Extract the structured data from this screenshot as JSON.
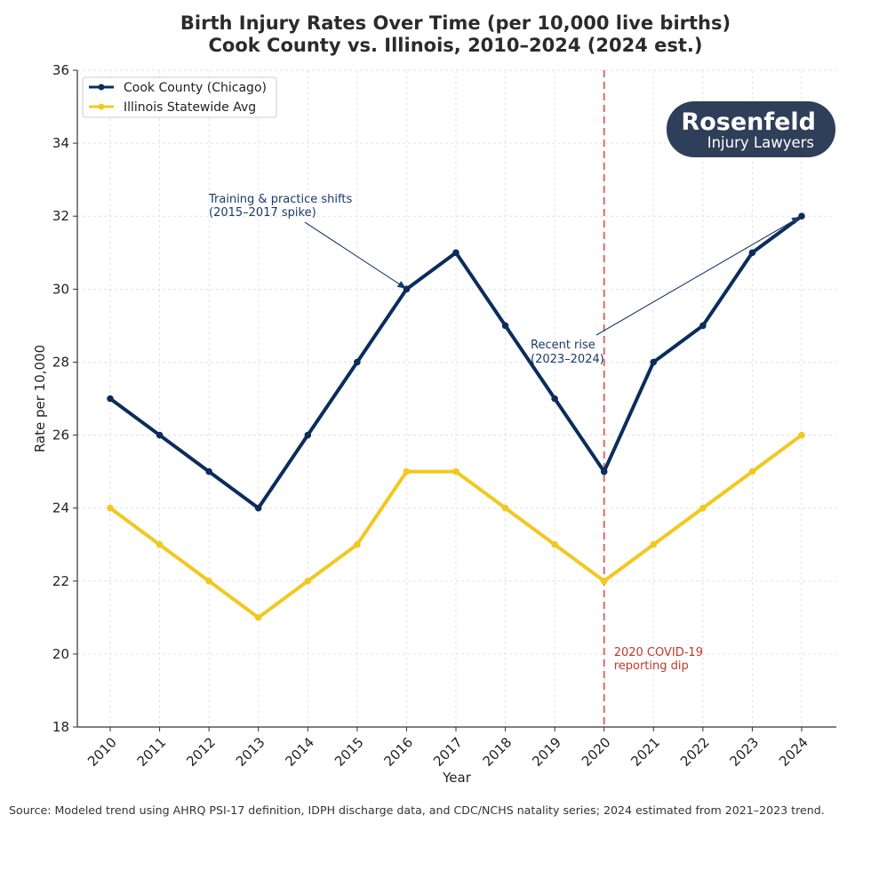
{
  "chart_data": {
    "type": "line",
    "title_line1": "Birth Injury Rates Over Time (per 10,000 live births)",
    "title_line2": "Cook County vs. Illinois, 2010–2024 (2024 est.)",
    "xlabel": "Year",
    "ylabel": "Rate per 10,000",
    "x": [
      2010,
      2011,
      2012,
      2013,
      2014,
      2015,
      2016,
      2017,
      2018,
      2019,
      2020,
      2021,
      2022,
      2023,
      2024
    ],
    "ylim": [
      18,
      36
    ],
    "yticks": [
      18,
      20,
      22,
      24,
      26,
      28,
      30,
      32,
      34,
      36
    ],
    "grid": true,
    "legend_position": "top-left",
    "series": [
      {
        "name": "Cook County (Chicago)",
        "color": "#0b2d5b",
        "values": [
          27,
          26,
          25,
          24,
          26,
          28,
          30,
          31,
          29,
          27,
          25,
          28,
          29,
          31,
          32
        ]
      },
      {
        "name": "Illinois Statewide Avg",
        "color": "#f2c81f",
        "values": [
          24,
          23,
          22,
          21,
          22,
          23,
          25,
          25,
          24,
          23,
          22,
          23,
          24,
          25,
          26
        ]
      }
    ],
    "vline": {
      "x": 2020,
      "color": "#d9534f",
      "label": "2020 COVID-19\nreporting dip"
    },
    "annotations": [
      {
        "text": "Training & practice shifts\n(2015–2017 spike)",
        "points_to": {
          "x": 2016,
          "y": 30
        }
      },
      {
        "text": "Recent rise\n(2023–2024)",
        "points_to": {
          "x": 2024,
          "y": 32
        }
      }
    ]
  },
  "logo": {
    "name": "Rosenfeld",
    "tagline": "Injury Lawyers",
    "bg_color": "#2f3e59"
  },
  "source_note": "Source: Modeled trend using AHRQ PSI-17 definition, IDPH discharge data, and CDC/NCHS natality series; 2024 estimated from 2021–2023 trend."
}
